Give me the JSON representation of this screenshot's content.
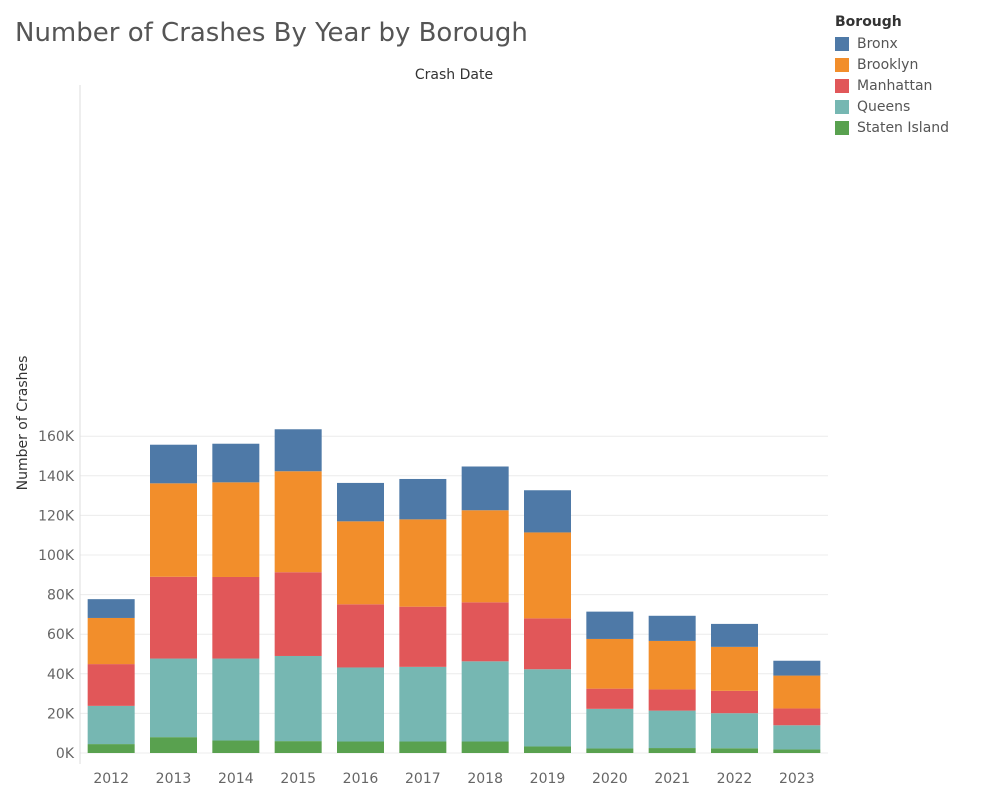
{
  "chart_data": {
    "type": "bar",
    "stacked": true,
    "title": "Number of Crashes By Year by Borough",
    "xlabel": "Crash Date",
    "ylabel": "Number of Crashes",
    "categories": [
      "2012",
      "2013",
      "2014",
      "2015",
      "2016",
      "2017",
      "2018",
      "2019",
      "2020",
      "2021",
      "2022",
      "2023"
    ],
    "ylim": [
      0,
      170000
    ],
    "yticks": [
      0,
      20000,
      40000,
      60000,
      80000,
      100000,
      120000,
      140000,
      160000
    ],
    "ytick_labels": [
      "0K",
      "20K",
      "40K",
      "60K",
      "80K",
      "100K",
      "120K",
      "140K",
      "160K"
    ],
    "grid": "horizontal",
    "legend_title": "Borough",
    "legend_position": "top-right",
    "series": [
      {
        "name": "Staten Island",
        "color": "#59A14F",
        "values": [
          4500,
          8000,
          6300,
          6000,
          5800,
          5800,
          5800,
          3300,
          2300,
          2500,
          2400,
          1800
        ]
      },
      {
        "name": "Queens",
        "color": "#76B7B2",
        "values": [
          19300,
          39700,
          41400,
          43000,
          37400,
          37700,
          40500,
          39000,
          20000,
          18900,
          17700,
          12200
        ]
      },
      {
        "name": "Manhattan",
        "color": "#E15759",
        "values": [
          21100,
          41300,
          41200,
          42300,
          31900,
          30400,
          29800,
          25700,
          10200,
          10700,
          11300,
          8500
        ]
      },
      {
        "name": "Brooklyn",
        "color": "#F28E2B",
        "values": [
          23300,
          47200,
          47800,
          51000,
          41900,
          44100,
          46500,
          43400,
          25100,
          24500,
          22200,
          16600
        ]
      },
      {
        "name": "Bronx",
        "color": "#4E79A7",
        "values": [
          9500,
          19500,
          19500,
          21200,
          19400,
          20400,
          22100,
          21300,
          13800,
          12700,
          11600,
          7500
        ]
      }
    ],
    "legend_order": [
      "Bronx",
      "Brooklyn",
      "Manhattan",
      "Queens",
      "Staten Island"
    ]
  }
}
